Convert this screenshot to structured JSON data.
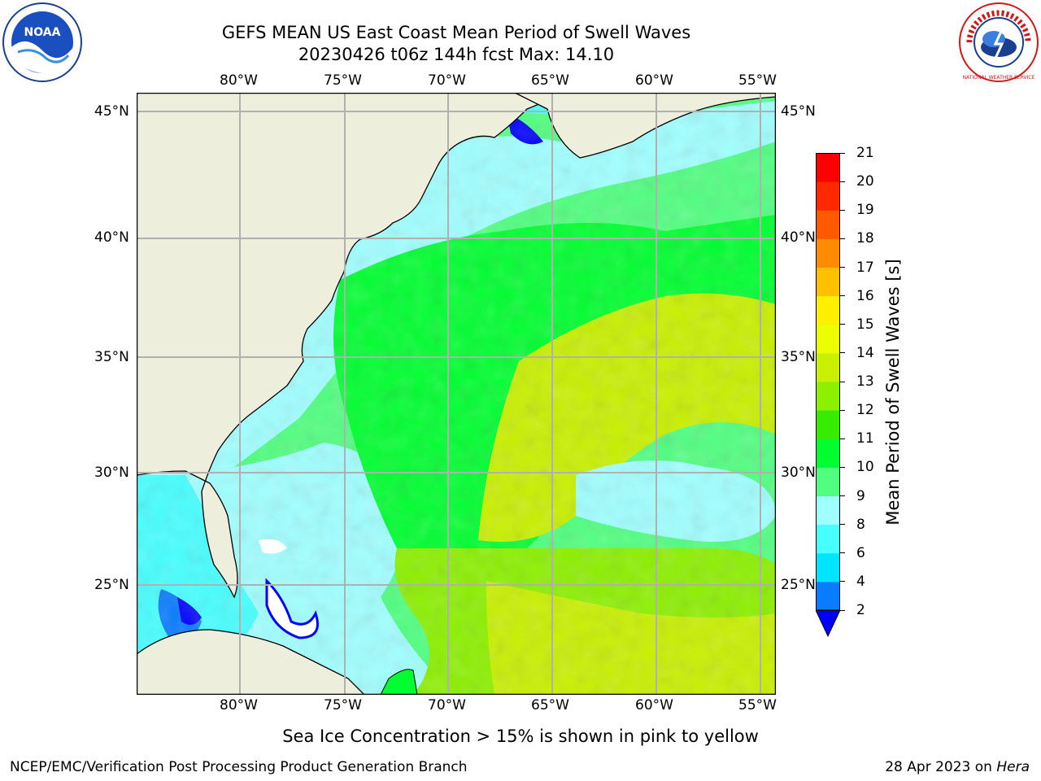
{
  "title": {
    "line1": "GEFS MEAN US East Coast Mean Period of Swell Waves",
    "line2": "20230426 t06z 144h fcst   Max: 14.10"
  },
  "logos": {
    "left": {
      "text": "NOAA",
      "icon": "noaa-logo-icon"
    },
    "right": {
      "text": "NATIONAL WEATHER SERVICE",
      "icon": "nws-logo-icon"
    }
  },
  "map": {
    "lon_labels": [
      "80°W",
      "75°W",
      "70°W",
      "65°W",
      "60°W",
      "55°W"
    ],
    "lat_labels": [
      "45°N",
      "40°N",
      "35°N",
      "30°N",
      "25°N"
    ],
    "land_color": "#eeeedc",
    "grid_color": "#b0b0b0"
  },
  "colorbar": {
    "title": "Mean Period of Swell Waves [s]",
    "tick_labels": [
      "2",
      "4",
      "6",
      "8",
      "9",
      "10",
      "11",
      "12",
      "13",
      "14",
      "15",
      "16",
      "17",
      "18",
      "19",
      "20",
      "21"
    ],
    "colors": [
      "#0a7cff",
      "#00e5ff",
      "#46ffff",
      "#a0ffff",
      "#50ff80",
      "#00ff30",
      "#36ec00",
      "#8cf000",
      "#c8f000",
      "#ecff00",
      "#fff000",
      "#ffc000",
      "#ff8c00",
      "#ff5a00",
      "#ff2800",
      "#ff0000"
    ],
    "underflow_color": "#0000ff"
  },
  "caption": "Sea Ice Concentration > 15% is shown in pink to yellow",
  "footer": {
    "left": "NCEP/EMC/Verification Post Processing Product Generation Branch",
    "right_prefix": "28 Apr 2023 on ",
    "right_host": "Hera"
  }
}
